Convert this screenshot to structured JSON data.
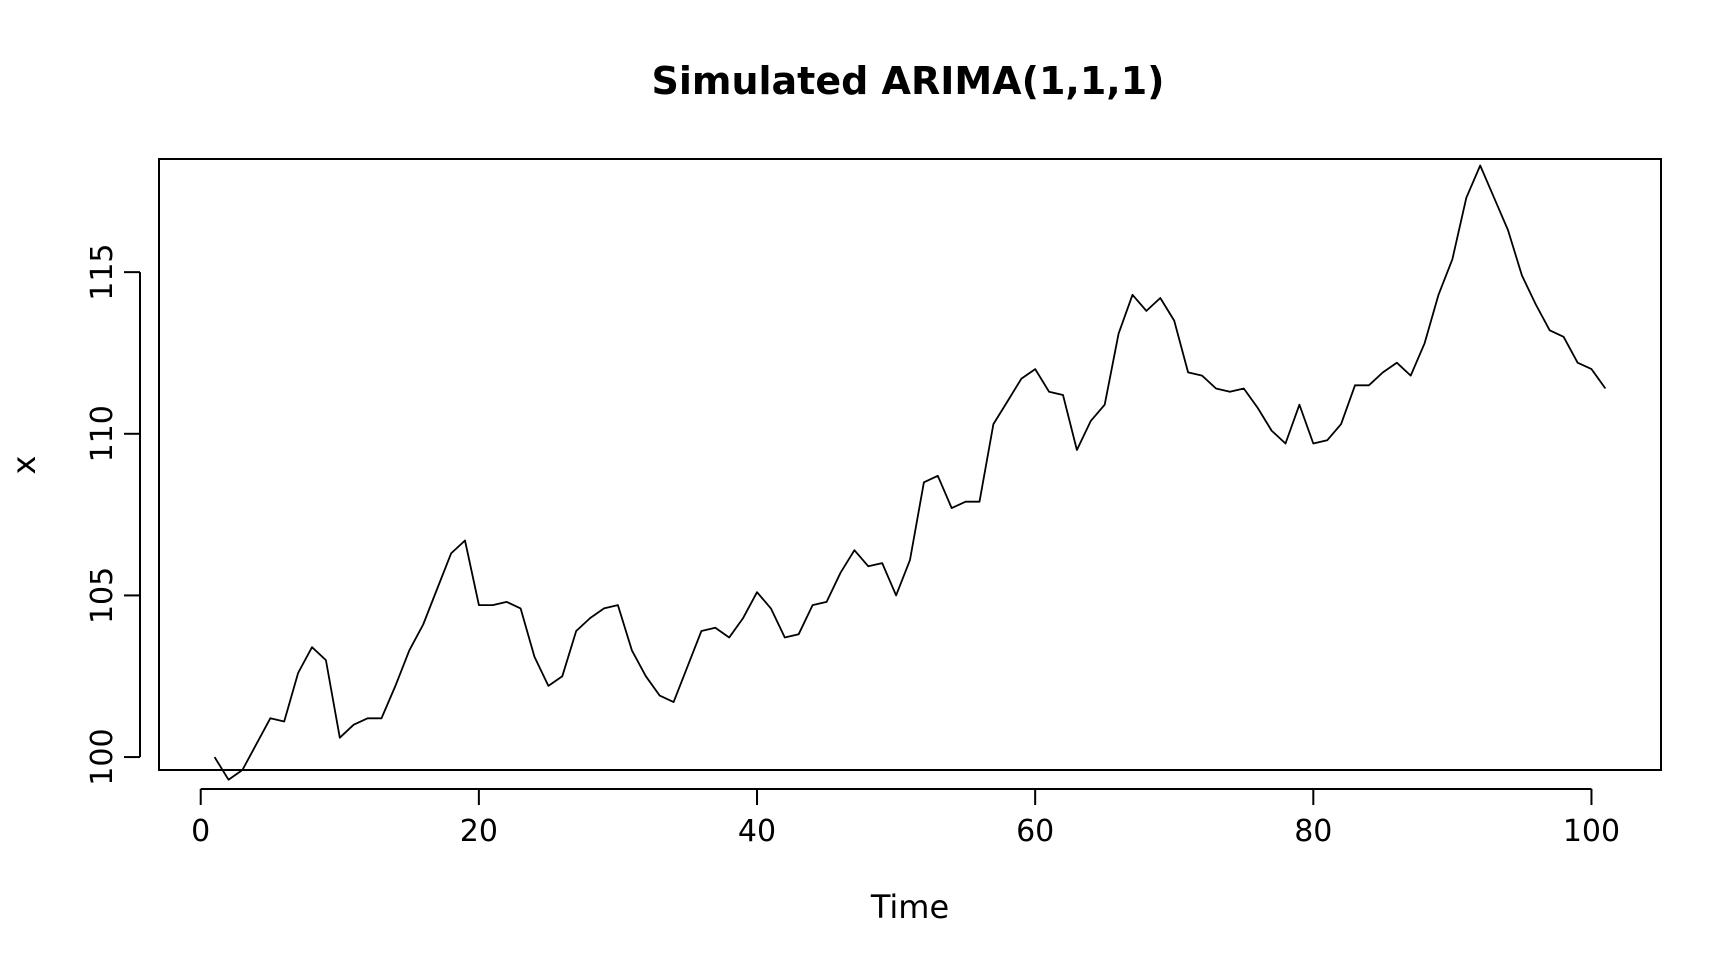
{
  "chart_data": {
    "type": "line",
    "title": "Simulated ARIMA(1,1,1)",
    "xlabel": "Time",
    "ylabel": "x",
    "xlim": [
      -3,
      105
    ],
    "ylim": [
      99.6,
      118.5
    ],
    "xticks": [
      "0",
      "20",
      "40",
      "60",
      "80",
      "100"
    ],
    "yticks": [
      "100",
      "105",
      "110",
      "115"
    ],
    "grid": false,
    "legend": "none",
    "line_color": "#000000",
    "series": [
      {
        "x": [
          1,
          2,
          3,
          4,
          5,
          6,
          7,
          8,
          9,
          10,
          11,
          12,
          13,
          14,
          15,
          16,
          17,
          18,
          19,
          20,
          21,
          22,
          23,
          24,
          25,
          26,
          27,
          28,
          29,
          30,
          31,
          32,
          33,
          34,
          35,
          36,
          37,
          38,
          39,
          40,
          41,
          42,
          43,
          44,
          45,
          46,
          47,
          48,
          49,
          50,
          51,
          52,
          53,
          54,
          55,
          56,
          57,
          58,
          59,
          60,
          61,
          62,
          63,
          64,
          65,
          66,
          67,
          68,
          69,
          70,
          71,
          72,
          73,
          74,
          75,
          76,
          77,
          78,
          79,
          80,
          81,
          82,
          83,
          84,
          85,
          86,
          87,
          88,
          89,
          90,
          91,
          92,
          93,
          94,
          95,
          96,
          97,
          98,
          99,
          100,
          101
        ],
        "values": [
          100.0,
          99.3,
          99.6,
          100.4,
          101.2,
          101.1,
          102.6,
          103.4,
          103.0,
          100.6,
          101.0,
          101.2,
          101.2,
          102.2,
          103.3,
          104.1,
          105.2,
          106.3,
          106.7,
          104.7,
          104.7,
          104.8,
          104.6,
          103.1,
          102.2,
          102.5,
          103.9,
          104.3,
          104.6,
          104.7,
          103.3,
          102.5,
          101.9,
          101.7,
          102.8,
          103.9,
          104.0,
          103.7,
          104.3,
          105.1,
          104.6,
          103.7,
          103.8,
          104.7,
          104.8,
          105.7,
          106.4,
          105.9,
          106.0,
          105.0,
          106.1,
          108.5,
          108.7,
          107.7,
          107.9,
          107.9,
          110.3,
          111.0,
          111.7,
          112.0,
          111.3,
          111.2,
          109.5,
          110.4,
          110.9,
          113.1,
          114.3,
          113.8,
          114.2,
          113.5,
          111.9,
          111.8,
          111.4,
          111.3,
          111.4,
          110.8,
          110.1,
          109.7,
          110.9,
          109.7,
          109.8,
          110.3,
          111.5,
          111.5,
          111.9,
          112.2,
          111.8,
          112.8,
          114.3,
          115.4,
          117.3,
          118.3,
          117.3,
          116.3,
          114.9,
          114.0,
          113.2,
          113.0,
          112.2,
          112.0,
          111.4
        ]
      }
    ]
  }
}
